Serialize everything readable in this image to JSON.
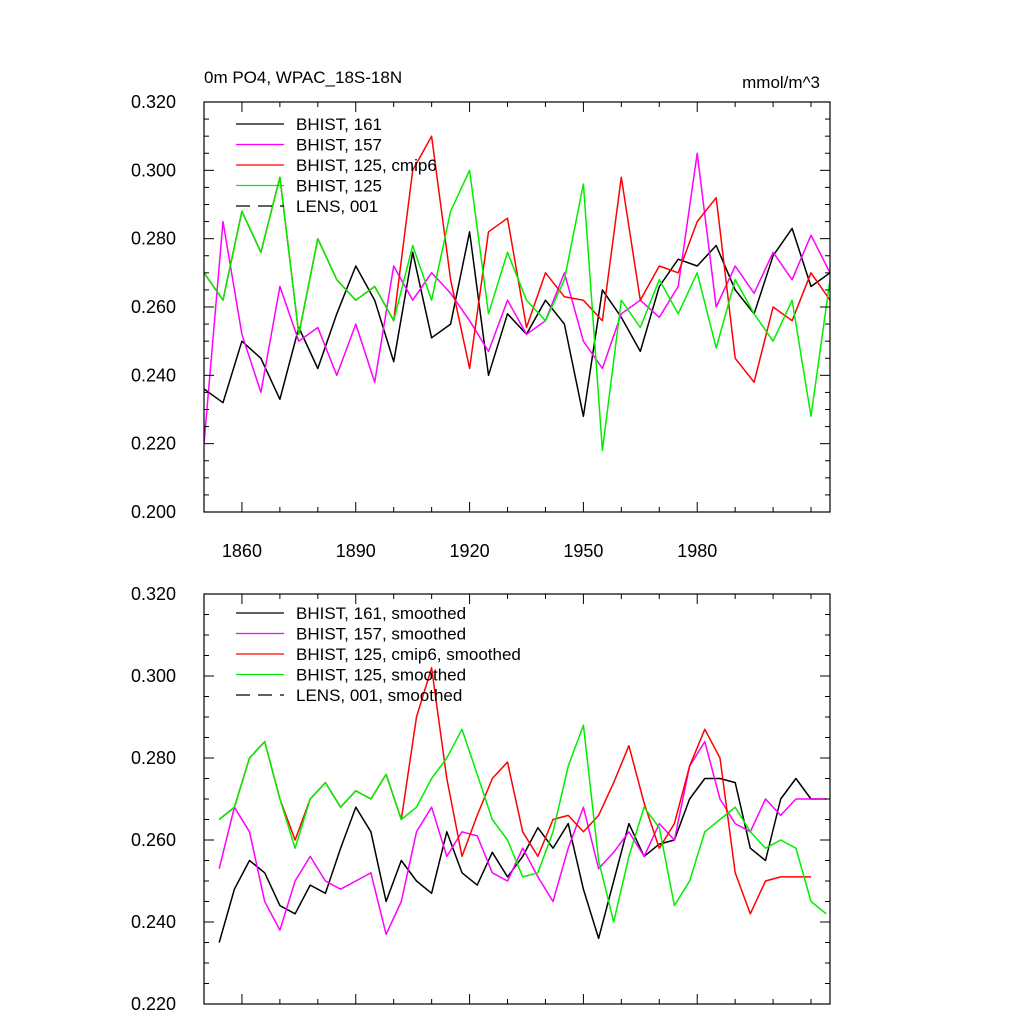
{
  "figure": {
    "title_left": "0m PO4, WPAC_18S-18N",
    "title_right": "mmol/m^3"
  },
  "chart_data": [
    {
      "type": "line",
      "title": "0m PO4, WPAC_18S-18N",
      "units": "mmol/m^3",
      "xlabel": "",
      "ylabel": "",
      "xlim": [
        1850,
        2015
      ],
      "ylim": [
        0.2,
        0.32
      ],
      "x_ticks": [
        1860,
        1890,
        1920,
        1950,
        1980
      ],
      "x_tick_labels": [
        "1860",
        "1890",
        "1920",
        "1950",
        "1980"
      ],
      "y_ticks": [
        0.2,
        0.22,
        0.24,
        0.26,
        0.28,
        0.3,
        0.32
      ],
      "y_tick_labels": [
        "0.200",
        "0.220",
        "0.240",
        "0.260",
        "0.280",
        "0.300",
        "0.320"
      ],
      "legend_position": "top-left",
      "series": [
        {
          "name": "BHIST, 161",
          "color": "#000000",
          "dash": "solid",
          "x": [
            1850,
            1855,
            1860,
            1865,
            1870,
            1875,
            1880,
            1885,
            1890,
            1895,
            1900,
            1905,
            1910,
            1915,
            1920,
            1925,
            1930,
            1935,
            1940,
            1945,
            1950,
            1955,
            1960,
            1965,
            1970,
            1975,
            1980,
            1985,
            1990,
            1995,
            2000,
            2005,
            2010,
            2015
          ],
          "values": [
            0.236,
            0.232,
            0.25,
            0.245,
            0.233,
            0.254,
            0.242,
            0.258,
            0.272,
            0.262,
            0.244,
            0.276,
            0.251,
            0.255,
            0.282,
            0.24,
            0.258,
            0.252,
            0.262,
            0.255,
            0.228,
            0.265,
            0.257,
            0.247,
            0.266,
            0.274,
            0.272,
            0.278,
            0.265,
            0.258,
            0.275,
            0.283,
            0.266,
            0.27
          ]
        },
        {
          "name": "BHIST, 157",
          "color": "#ff00ff",
          "dash": "solid",
          "x": [
            1850,
            1855,
            1860,
            1865,
            1870,
            1875,
            1880,
            1885,
            1890,
            1895,
            1900,
            1905,
            1910,
            1915,
            1920,
            1925,
            1930,
            1935,
            1940,
            1945,
            1950,
            1955,
            1960,
            1965,
            1970,
            1975,
            1980,
            1985,
            1990,
            1995,
            2000,
            2005,
            2010,
            2015
          ],
          "values": [
            0.22,
            0.285,
            0.252,
            0.235,
            0.266,
            0.25,
            0.254,
            0.24,
            0.255,
            0.238,
            0.272,
            0.262,
            0.27,
            0.264,
            0.256,
            0.247,
            0.262,
            0.252,
            0.256,
            0.27,
            0.25,
            0.242,
            0.258,
            0.262,
            0.257,
            0.266,
            0.305,
            0.26,
            0.272,
            0.264,
            0.276,
            0.268,
            0.281,
            0.27
          ]
        },
        {
          "name": "BHIST, 125, cmip6",
          "color": "#ff0000",
          "dash": "solid",
          "x": [
            1850,
            1855,
            1860,
            1865,
            1870,
            1875,
            1880,
            1885,
            1890,
            1895,
            1900,
            1905,
            1910,
            1915,
            1920,
            1925,
            1930,
            1935,
            1940,
            1945,
            1950,
            1955,
            1960,
            1965,
            1970,
            1975,
            1980,
            1985,
            1990,
            1995,
            2000,
            2005,
            2010,
            2015
          ],
          "values": [
            0.27,
            0.262,
            0.288,
            0.276,
            0.298,
            0.252,
            0.28,
            0.268,
            0.262,
            0.266,
            0.256,
            0.3,
            0.31,
            0.268,
            0.242,
            0.282,
            0.286,
            0.254,
            0.27,
            0.263,
            0.262,
            0.256,
            0.298,
            0.262,
            0.272,
            0.27,
            0.285,
            0.292,
            0.245,
            0.238,
            0.26,
            0.256,
            0.27,
            0.262
          ]
        },
        {
          "name": "BHIST, 125",
          "color": "#00ee00",
          "dash": "solid",
          "x": [
            1850,
            1855,
            1860,
            1865,
            1870,
            1875,
            1880,
            1885,
            1890,
            1895,
            1900,
            1905,
            1910,
            1915,
            1920,
            1925,
            1930,
            1935,
            1940,
            1945,
            1950,
            1955,
            1960,
            1965,
            1970,
            1975,
            1980,
            1985,
            1990,
            1995,
            2000,
            2005,
            2010,
            2015
          ],
          "values": [
            0.27,
            0.262,
            0.288,
            0.276,
            0.298,
            0.252,
            0.28,
            0.268,
            0.262,
            0.266,
            0.256,
            0.278,
            0.262,
            0.288,
            0.3,
            0.258,
            0.276,
            0.262,
            0.256,
            0.268,
            0.296,
            0.218,
            0.262,
            0.254,
            0.268,
            0.258,
            0.27,
            0.248,
            0.268,
            0.258,
            0.25,
            0.262,
            0.228,
            0.268
          ]
        },
        {
          "name": "LENS, 001",
          "color": "#000000",
          "dash": "dashed",
          "x": [],
          "values": []
        }
      ]
    },
    {
      "type": "line",
      "title": "",
      "xlabel": "",
      "ylabel": "",
      "xlim": [
        1850,
        2015
      ],
      "ylim": [
        0.22,
        0.32
      ],
      "x_ticks": [
        1860,
        1890,
        1920,
        1950,
        1980
      ],
      "y_ticks": [
        0.22,
        0.24,
        0.26,
        0.28,
        0.3,
        0.32
      ],
      "y_tick_labels": [
        "0.220",
        "0.240",
        "0.260",
        "0.280",
        "0.300",
        "0.320"
      ],
      "legend_position": "top-left",
      "series": [
        {
          "name": "BHIST, 161, smoothed",
          "color": "#000000",
          "dash": "solid",
          "x": [
            1854,
            1858,
            1862,
            1866,
            1870,
            1874,
            1878,
            1882,
            1886,
            1890,
            1894,
            1898,
            1902,
            1906,
            1910,
            1914,
            1918,
            1922,
            1926,
            1930,
            1934,
            1938,
            1942,
            1946,
            1950,
            1954,
            1958,
            1962,
            1966,
            1970,
            1974,
            1978,
            1982,
            1986,
            1990,
            1994,
            1998,
            2002,
            2006,
            2010,
            2014
          ],
          "values": [
            0.235,
            0.248,
            0.255,
            0.252,
            0.244,
            0.242,
            0.249,
            0.247,
            0.258,
            0.268,
            0.262,
            0.245,
            0.255,
            0.25,
            0.247,
            0.262,
            0.252,
            0.249,
            0.257,
            0.251,
            0.256,
            0.263,
            0.258,
            0.264,
            0.248,
            0.236,
            0.25,
            0.264,
            0.256,
            0.259,
            0.26,
            0.27,
            0.275,
            0.275,
            0.274,
            0.258,
            0.255,
            0.27,
            0.275,
            0.27,
            0.27
          ]
        },
        {
          "name": "BHIST, 157, smoothed",
          "color": "#ff00ff",
          "dash": "solid",
          "x": [
            1854,
            1858,
            1862,
            1866,
            1870,
            1874,
            1878,
            1882,
            1886,
            1890,
            1894,
            1898,
            1902,
            1906,
            1910,
            1914,
            1918,
            1922,
            1926,
            1930,
            1934,
            1938,
            1942,
            1946,
            1950,
            1954,
            1958,
            1962,
            1966,
            1970,
            1974,
            1978,
            1982,
            1986,
            1990,
            1994,
            1998,
            2002,
            2006,
            2010,
            2014
          ],
          "values": [
            0.253,
            0.268,
            0.262,
            0.245,
            0.238,
            0.25,
            0.256,
            0.25,
            0.248,
            0.25,
            0.252,
            0.237,
            0.245,
            0.262,
            0.268,
            0.256,
            0.262,
            0.261,
            0.252,
            0.25,
            0.258,
            0.251,
            0.245,
            0.258,
            0.268,
            0.253,
            0.257,
            0.262,
            0.256,
            0.264,
            0.26,
            0.278,
            0.284,
            0.27,
            0.264,
            0.262,
            0.27,
            0.266,
            0.27,
            0.27,
            0.27
          ]
        },
        {
          "name": "BHIST, 125, cmip6, smoothed",
          "color": "#ff0000",
          "dash": "solid",
          "x": [
            1854,
            1858,
            1862,
            1866,
            1870,
            1874,
            1878,
            1882,
            1886,
            1890,
            1894,
            1898,
            1902,
            1906,
            1910,
            1914,
            1918,
            1922,
            1926,
            1930,
            1934,
            1938,
            1942,
            1946,
            1950,
            1954,
            1958,
            1962,
            1966,
            1970,
            1974,
            1978,
            1982,
            1986,
            1990,
            1994,
            1998,
            2002,
            2006,
            2010
          ],
          "values": [
            0.265,
            0.268,
            0.28,
            0.284,
            0.27,
            0.26,
            0.27,
            0.274,
            0.268,
            0.272,
            0.27,
            0.276,
            0.265,
            0.29,
            0.302,
            0.275,
            0.256,
            0.266,
            0.275,
            0.279,
            0.262,
            0.256,
            0.265,
            0.266,
            0.262,
            0.266,
            0.274,
            0.283,
            0.269,
            0.258,
            0.264,
            0.278,
            0.287,
            0.28,
            0.252,
            0.242,
            0.25,
            0.251,
            0.251,
            0.251
          ]
        },
        {
          "name": "BHIST, 125, smoothed",
          "color": "#00ee00",
          "dash": "solid",
          "x": [
            1854,
            1858,
            1862,
            1866,
            1870,
            1874,
            1878,
            1882,
            1886,
            1890,
            1894,
            1898,
            1902,
            1906,
            1910,
            1914,
            1918,
            1922,
            1926,
            1930,
            1934,
            1938,
            1942,
            1946,
            1950,
            1954,
            1958,
            1962,
            1966,
            1970,
            1974,
            1978,
            1982,
            1986,
            1990,
            1994,
            1998,
            2002,
            2006,
            2010,
            2014
          ],
          "values": [
            0.265,
            0.268,
            0.28,
            0.284,
            0.27,
            0.258,
            0.27,
            0.274,
            0.268,
            0.272,
            0.27,
            0.276,
            0.265,
            0.268,
            0.275,
            0.28,
            0.287,
            0.276,
            0.265,
            0.26,
            0.251,
            0.252,
            0.262,
            0.278,
            0.288,
            0.255,
            0.24,
            0.256,
            0.268,
            0.263,
            0.244,
            0.25,
            0.262,
            0.265,
            0.268,
            0.262,
            0.258,
            0.26,
            0.258,
            0.245,
            0.242
          ]
        },
        {
          "name": "LENS, 001, smoothed",
          "color": "#000000",
          "dash": "dashed",
          "x": [],
          "values": []
        }
      ]
    }
  ]
}
